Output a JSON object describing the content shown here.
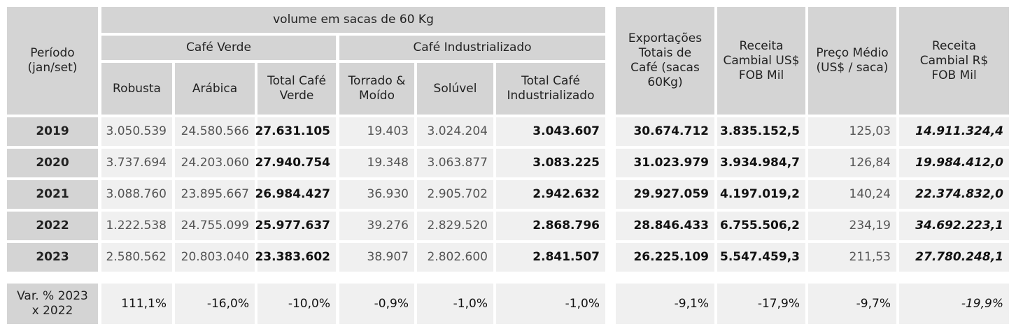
{
  "header": {
    "periodo": "Período (jan/set)",
    "volume": "volume em sacas de 60 Kg",
    "cafe_verde": "Café Verde",
    "cafe_industrializado": "Café Industrializado",
    "robusta": "Robusta",
    "arabica": "Arábica",
    "total_cafe_verde": "Total Café Verde",
    "torrado_moido": "Torrado & Moído",
    "soluvel": "Solúvel",
    "total_cafe_industrializado": "Total Café Industrializado",
    "exportacoes": "Exportações Totais de Café (sacas 60Kg)",
    "receita_usd": "Receita Cambial US$ FOB Mil",
    "preco_medio": "Preço Médio (US$ / saca)",
    "receita_brl": "Receita Cambial R$ FOB Mil"
  },
  "rows": [
    {
      "periodo": "2019",
      "robusta": "3.050.539",
      "arabica": "24.580.566",
      "total_verde": "27.631.105",
      "torrado": "19.403",
      "soluvel": "3.024.204",
      "total_ind": "3.043.607",
      "exportacoes": "30.674.712",
      "receita_usd": "3.835.152,5",
      "preco": "125,03",
      "receita_brl": "14.911.324,4"
    },
    {
      "periodo": "2020",
      "robusta": "3.737.694",
      "arabica": "24.203.060",
      "total_verde": "27.940.754",
      "torrado": "19.348",
      "soluvel": "3.063.877",
      "total_ind": "3.083.225",
      "exportacoes": "31.023.979",
      "receita_usd": "3.934.984,7",
      "preco": "126,84",
      "receita_brl": "19.984.412,0"
    },
    {
      "periodo": "2021",
      "robusta": "3.088.760",
      "arabica": "23.895.667",
      "total_verde": "26.984.427",
      "torrado": "36.930",
      "soluvel": "2.905.702",
      "total_ind": "2.942.632",
      "exportacoes": "29.927.059",
      "receita_usd": "4.197.019,2",
      "preco": "140,24",
      "receita_brl": "22.374.832,0"
    },
    {
      "periodo": "2022",
      "robusta": "1.222.538",
      "arabica": "24.755.099",
      "total_verde": "25.977.637",
      "torrado": "39.276",
      "soluvel": "2.829.520",
      "total_ind": "2.868.796",
      "exportacoes": "28.846.433",
      "receita_usd": "6.755.506,2",
      "preco": "234,19",
      "receita_brl": "34.692.223,1"
    },
    {
      "periodo": "2023",
      "robusta": "2.580.562",
      "arabica": "20.803.040",
      "total_verde": "23.383.602",
      "torrado": "38.907",
      "soluvel": "2.802.600",
      "total_ind": "2.841.507",
      "exportacoes": "26.225.109",
      "receita_usd": "5.547.459,3",
      "preco": "211,53",
      "receita_brl": "27.780.248,1"
    }
  ],
  "variation": {
    "label": "Var. % 2023 x 2022",
    "robusta": "111,1%",
    "arabica": "-16,0%",
    "total_verde": "-10,0%",
    "torrado": "-0,9%",
    "soluvel": "-1,0%",
    "total_ind": "-1,0%",
    "exportacoes": "-9,1%",
    "receita_usd": "-17,9%",
    "preco": "-9,7%",
    "receita_brl": "-19,9%"
  }
}
